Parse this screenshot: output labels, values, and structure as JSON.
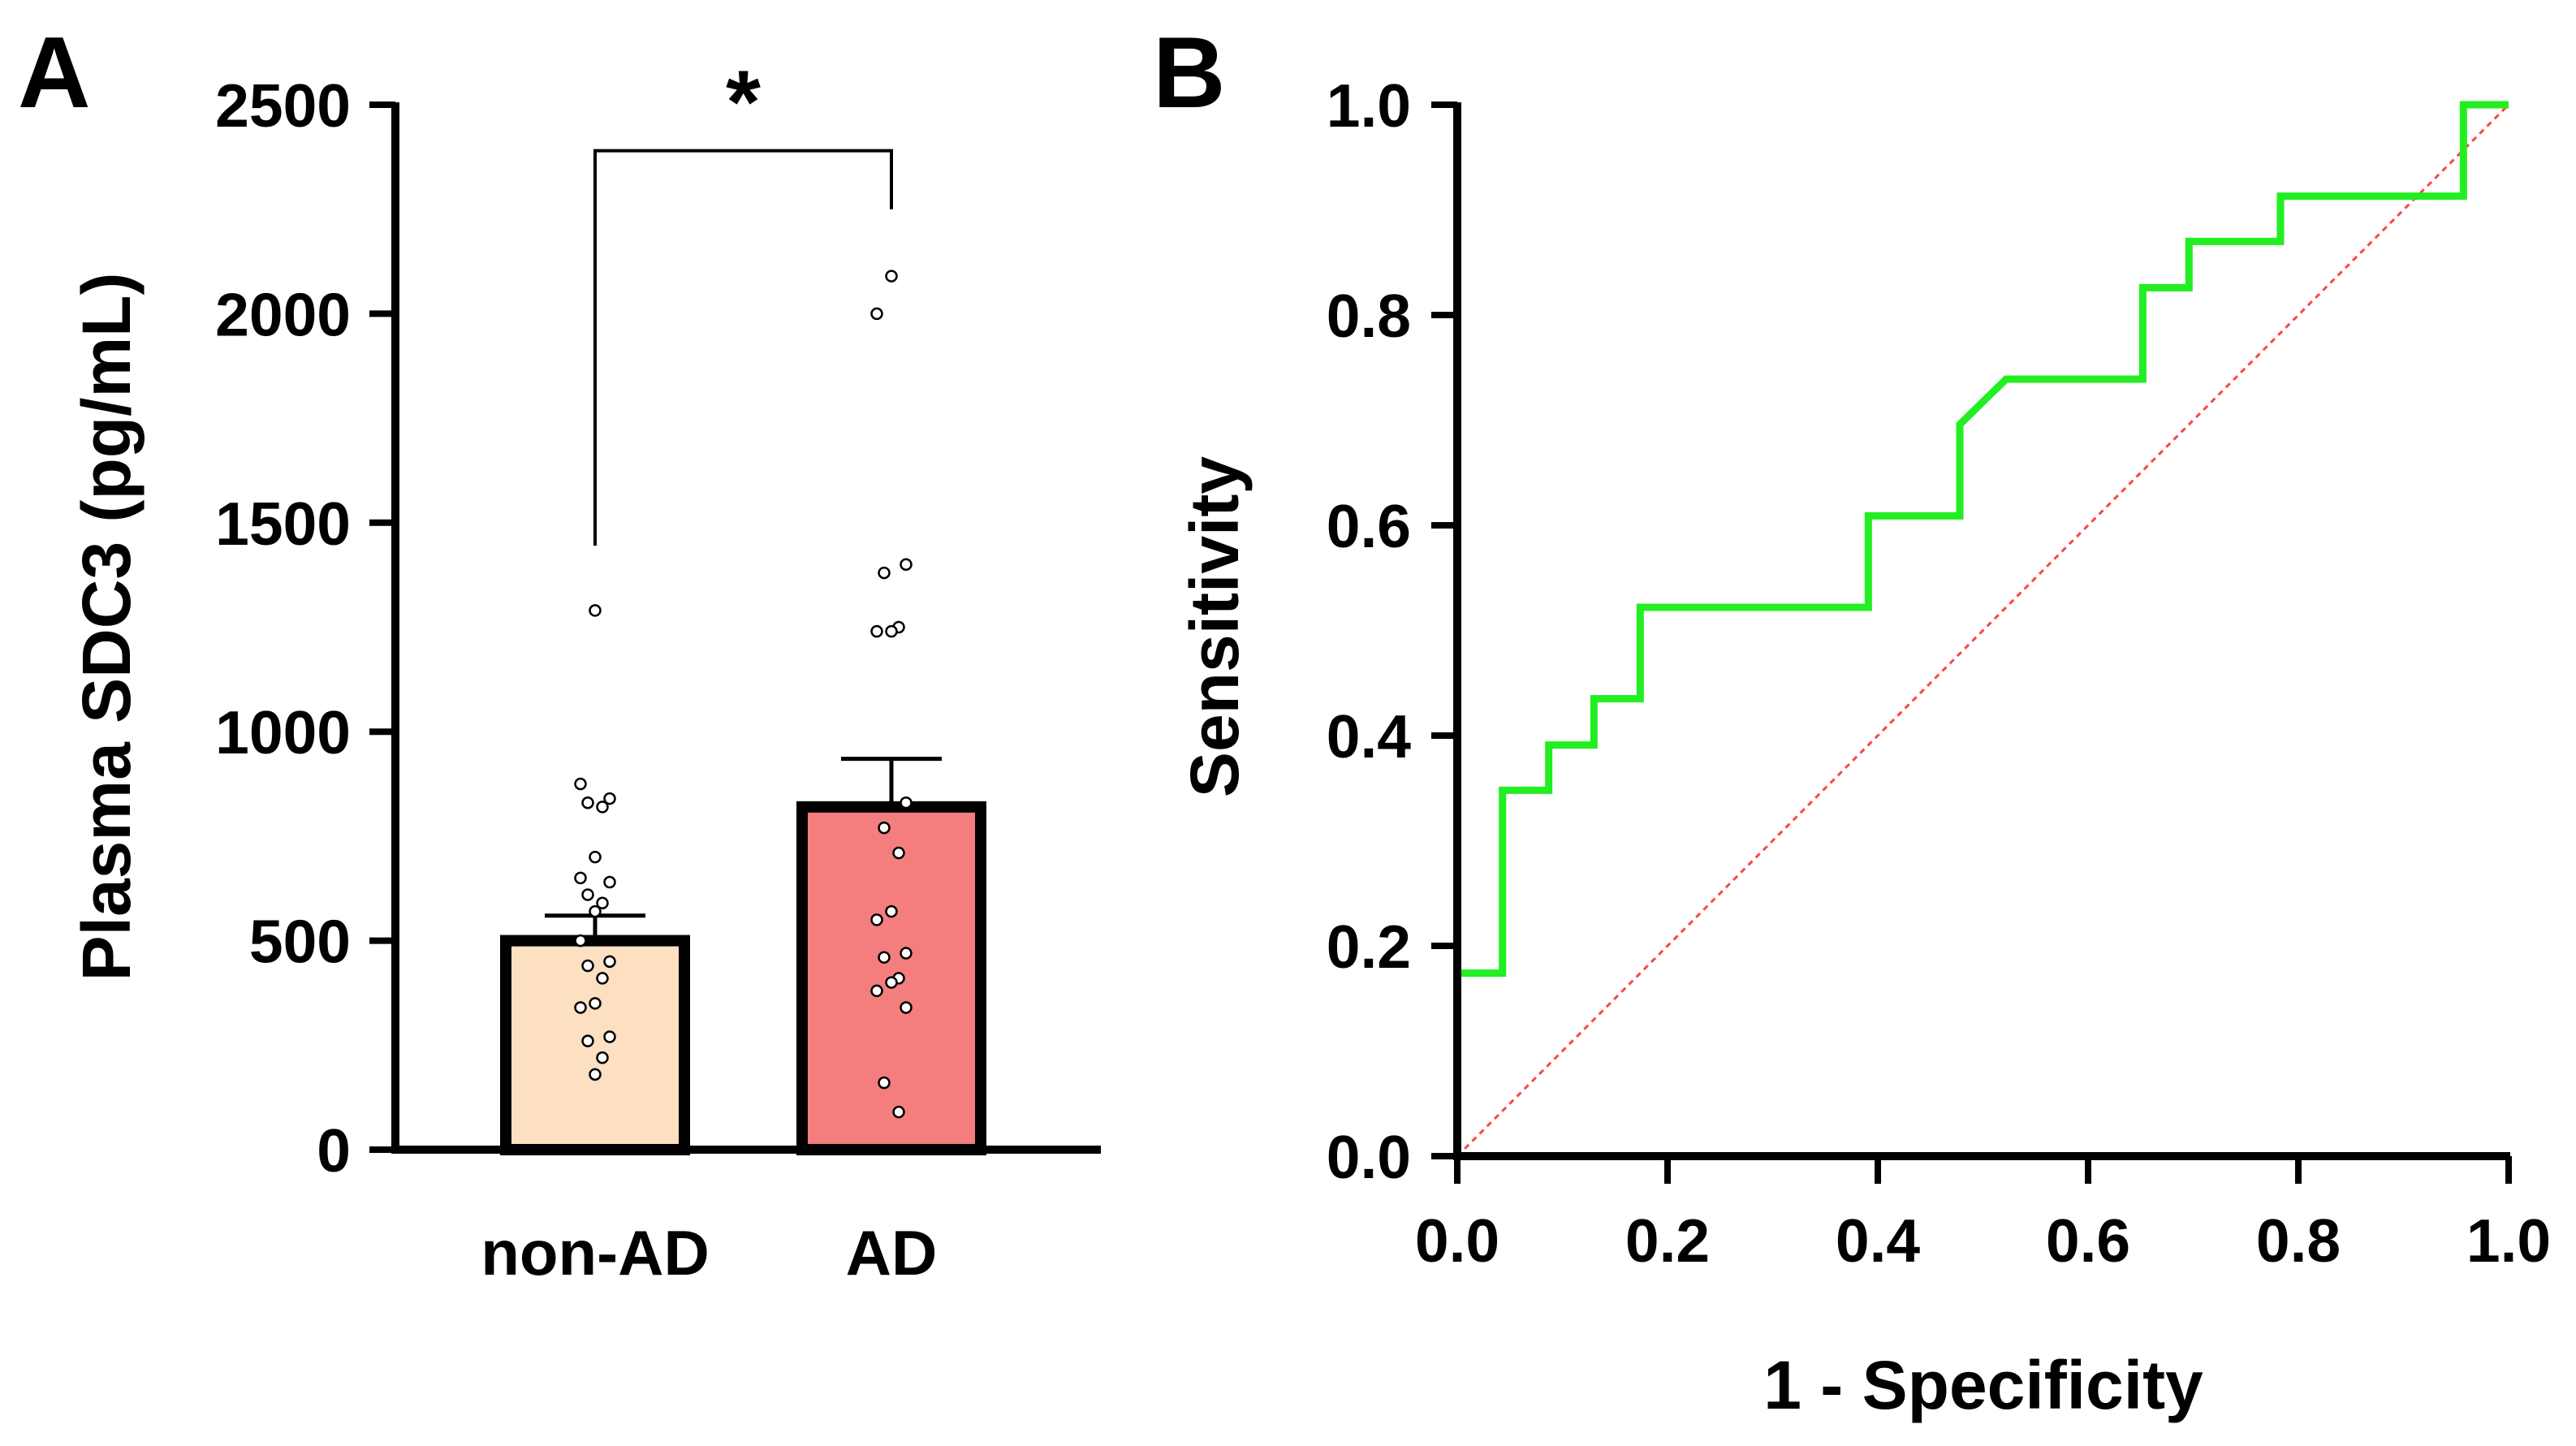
{
  "panels": [
    {
      "letter": "A"
    },
    {
      "letter": "B"
    }
  ],
  "chart_data": [
    {
      "type": "bar",
      "panel": "A",
      "title": "",
      "xlabel": "",
      "ylabel": "Plasma SDC3 (pg/mL)",
      "ylim": [
        0,
        2500
      ],
      "yticks": [
        0,
        500,
        1000,
        1500,
        2000,
        2500
      ],
      "ytick_labels": [
        "0",
        "500",
        "1000",
        "1500",
        "2000",
        "2500"
      ],
      "categories": [
        "non-AD",
        "AD"
      ],
      "values": [
        500,
        820
      ],
      "sem": [
        60,
        115
      ],
      "bar_colors": [
        "#FDDFC1",
        "#F47D7D"
      ],
      "points": [
        [
          1290,
          875,
          840,
          830,
          820,
          700,
          650,
          640,
          610,
          590,
          570,
          500,
          450,
          440,
          410,
          350,
          340,
          270,
          260,
          220,
          180
        ],
        [
          2090,
          2000,
          1400,
          1380,
          1250,
          1240,
          1240,
          830,
          770,
          710,
          570,
          550,
          470,
          460,
          410,
          400,
          380,
          340,
          160,
          90
        ]
      ],
      "significance": {
        "label": "*",
        "between": [
          "non-AD",
          "AD"
        ],
        "bracket_y": 2390
      },
      "grid": false
    },
    {
      "type": "line",
      "panel": "B",
      "title": "",
      "xlabel": "1 - Specificity",
      "ylabel": "Sensitivity",
      "xlim": [
        0,
        1
      ],
      "ylim": [
        0,
        1
      ],
      "xticks": [
        0,
        0.2,
        0.4,
        0.6,
        0.8,
        1.0
      ],
      "xtick_labels": [
        "0.0",
        "0.2",
        "0.4",
        "0.6",
        "0.8",
        "1.0"
      ],
      "yticks": [
        0,
        0.2,
        0.4,
        0.6,
        0.8,
        1.0
      ],
      "ytick_labels": [
        "0.0",
        "0.2",
        "0.4",
        "0.6",
        "0.8",
        "1.0"
      ],
      "series": [
        {
          "name": "ROC",
          "color": "#22EE22",
          "x": [
            0,
            0,
            0.043,
            0.043,
            0.087,
            0.087,
            0.13,
            0.13,
            0.174,
            0.174,
            0.391,
            0.391,
            0.478,
            0.478,
            0.522,
            0.652,
            0.652,
            0.696,
            0.696,
            0.783,
            0.783,
            0.957,
            0.957,
            1.0
          ],
          "y": [
            0,
            0.174,
            0.174,
            0.348,
            0.348,
            0.391,
            0.391,
            0.435,
            0.435,
            0.522,
            0.522,
            0.609,
            0.609,
            0.696,
            0.739,
            0.739,
            0.826,
            0.826,
            0.87,
            0.87,
            0.913,
            0.913,
            1.0,
            1.0
          ]
        },
        {
          "name": "reference",
          "color": "#FF4444",
          "dashed": true,
          "x": [
            0,
            1
          ],
          "y": [
            0,
            1
          ]
        }
      ],
      "grid": false
    }
  ]
}
